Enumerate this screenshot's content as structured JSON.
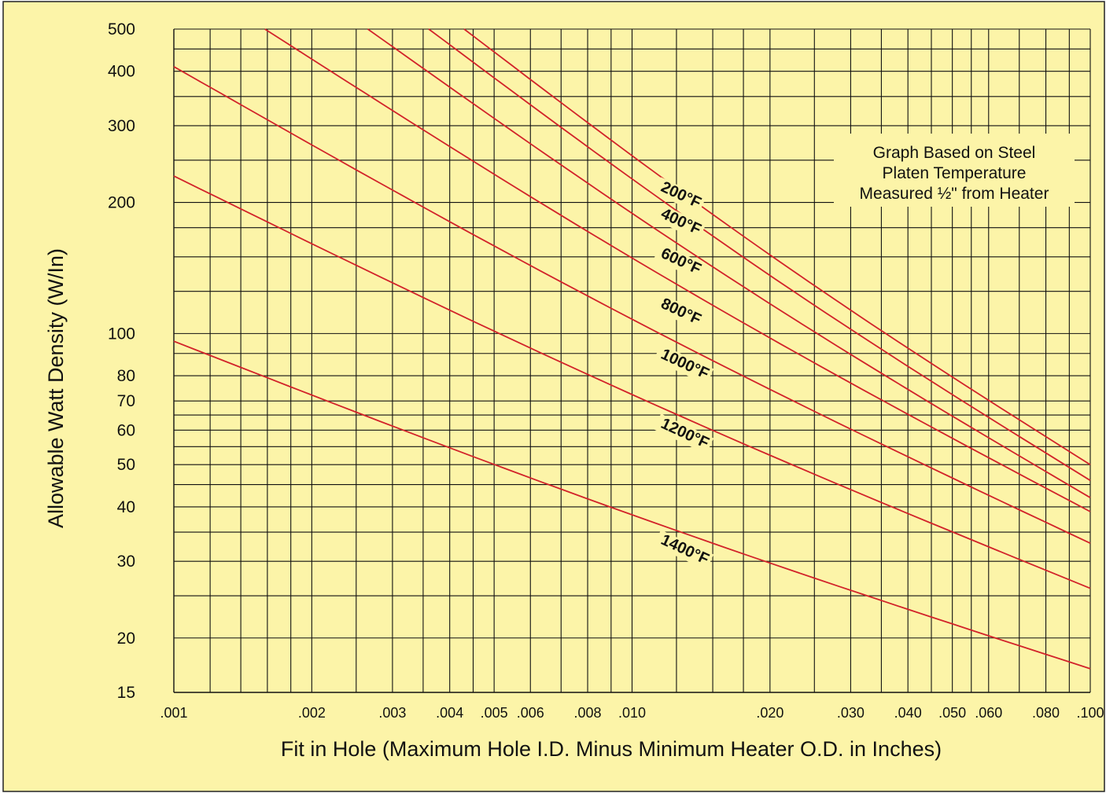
{
  "chart_data": {
    "type": "line",
    "title": "",
    "xlabel": "Fit in Hole (Maximum Hole I.D. Minus Minimum Heater O.D. in Inches)",
    "ylabel": "Allowable Watt Density (W/In)",
    "xscale": "log",
    "yscale": "log",
    "xlim": [
      0.001,
      0.1
    ],
    "ylim": [
      15,
      500
    ],
    "grid": true,
    "x_tick_labels": [
      {
        "value": 0.001,
        "label": ".001"
      },
      {
        "value": 0.002,
        "label": ".002"
      },
      {
        "value": 0.003,
        "label": ".003"
      },
      {
        "value": 0.004,
        "label": ".004"
      },
      {
        "value": 0.005,
        "label": ".005"
      },
      {
        "value": 0.006,
        "label": ".006"
      },
      {
        "value": 0.008,
        "label": ".008"
      },
      {
        "value": 0.01,
        "label": ".010"
      },
      {
        "value": 0.02,
        "label": ".020"
      },
      {
        "value": 0.03,
        "label": ".030"
      },
      {
        "value": 0.04,
        "label": ".040"
      },
      {
        "value": 0.05,
        "label": ".050"
      },
      {
        "value": 0.06,
        "label": ".060"
      },
      {
        "value": 0.08,
        "label": ".080"
      },
      {
        "value": 0.1,
        "label": ".100"
      }
    ],
    "y_tick_labels": [
      {
        "value": 15,
        "label": "15"
      },
      {
        "value": 20,
        "label": "20"
      },
      {
        "value": 30,
        "label": "30"
      },
      {
        "value": 40,
        "label": "40"
      },
      {
        "value": 50,
        "label": "50"
      },
      {
        "value": 60,
        "label": "60"
      },
      {
        "value": 70,
        "label": "70"
      },
      {
        "value": 80,
        "label": "80"
      },
      {
        "value": 100,
        "label": "100"
      },
      {
        "value": 200,
        "label": "200"
      },
      {
        "value": 300,
        "label": "300"
      },
      {
        "value": 400,
        "label": "400"
      },
      {
        "value": 500,
        "label": "500"
      }
    ],
    "x_gridlines": [
      0.0012,
      0.0014,
      0.0016,
      0.0018,
      0.002,
      0.0025,
      0.003,
      0.0035,
      0.004,
      0.0045,
      0.005,
      0.006,
      0.007,
      0.008,
      0.009,
      0.01,
      0.0125,
      0.015,
      0.0175,
      0.02,
      0.025,
      0.03,
      0.035,
      0.04,
      0.045,
      0.05,
      0.055,
      0.06,
      0.07,
      0.08,
      0.09,
      0.1
    ],
    "y_gridlines": [
      15,
      20,
      25,
      30,
      35,
      40,
      45,
      50,
      55,
      60,
      65,
      70,
      80,
      90,
      100,
      125,
      150,
      175,
      200,
      250,
      300,
      350,
      400,
      450,
      500
    ],
    "series": [
      {
        "name": "200°F",
        "x": [
          0.0043,
          0.1
        ],
        "y": [
          500,
          50
        ]
      },
      {
        "name": "400°F",
        "x": [
          0.0036,
          0.1
        ],
        "y": [
          500,
          46
        ]
      },
      {
        "name": "600°F",
        "x": [
          0.00265,
          0.1
        ],
        "y": [
          500,
          42
        ]
      },
      {
        "name": "800°F",
        "x": [
          0.00158,
          0.1
        ],
        "y": [
          500,
          39
        ]
      },
      {
        "name": "1000°F",
        "x": [
          0.001,
          0.1
        ],
        "y": [
          410,
          33
        ]
      },
      {
        "name": "1200°F",
        "x": [
          0.001,
          0.1
        ],
        "y": [
          230,
          26
        ]
      },
      {
        "name": "1400°F",
        "x": [
          0.001,
          0.1
        ],
        "y": [
          96,
          17
        ]
      }
    ],
    "annotations": [
      {
        "text": "200°F",
        "at_x": 0.0115,
        "at_y": 213
      },
      {
        "text": "400°F",
        "at_x": 0.0115,
        "at_y": 185
      },
      {
        "text": "600°F",
        "at_x": 0.0115,
        "at_y": 150
      },
      {
        "text": "800°F",
        "at_x": 0.0115,
        "at_y": 115
      },
      {
        "text": "1000°F",
        "at_x": 0.0115,
        "at_y": 88
      },
      {
        "text": "1200°F",
        "at_x": 0.0115,
        "at_y": 61
      },
      {
        "text": "1400°F",
        "at_x": 0.0115,
        "at_y": 33
      }
    ],
    "note": [
      "Graph Based on Steel",
      "Platen Temperature",
      "Measured ½\" from Heater"
    ]
  },
  "colors": {
    "background": "#fcf4a8",
    "grid": "#111111",
    "curve": "#d2232a",
    "frame": "#222222"
  }
}
